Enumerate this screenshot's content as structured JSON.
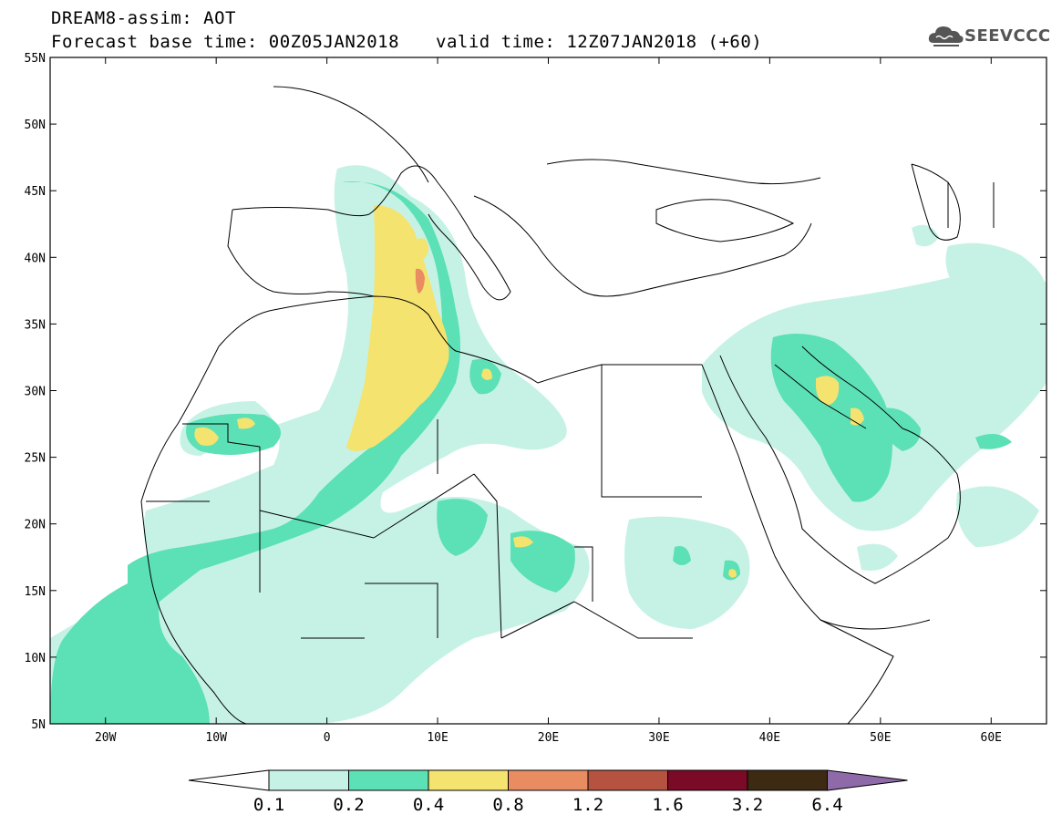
{
  "header": {
    "title_line1": "DREAM8-assim: AOT",
    "base_time": "Forecast base time: 00Z05JAN2018",
    "valid_time": "valid time: 12Z07JAN2018 (+60)"
  },
  "logo": {
    "text": "SEEVCCC",
    "icon": "cloud-icon"
  },
  "map": {
    "lat_labels": [
      "55N",
      "50N",
      "45N",
      "40N",
      "35N",
      "30N",
      "25N",
      "20N",
      "15N",
      "10N",
      "5N"
    ],
    "lon_labels": [
      "20W",
      "10W",
      "0",
      "10E",
      "20E",
      "30E",
      "40E",
      "50E",
      "60E"
    ],
    "lat_range": [
      5,
      55
    ],
    "lon_range": [
      -25,
      65
    ]
  },
  "colorbar": {
    "levels": [
      "0.1",
      "0.2",
      "0.4",
      "0.8",
      "1.2",
      "1.6",
      "3.2",
      "6.4"
    ],
    "colors": [
      "#ffffff",
      "#c6f2e6",
      "#5ce0b5",
      "#f4e36e",
      "#e98c62",
      "#b55340",
      "#7a0a26",
      "#3d2a12",
      "#8e6aa8"
    ]
  }
}
